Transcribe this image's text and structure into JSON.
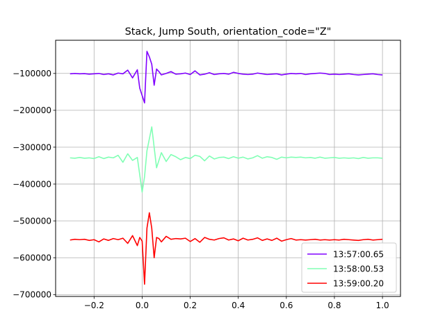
{
  "chart_data": {
    "type": "line",
    "title": "Stack, Jump South, orientation_code=\"Z\"",
    "xlabel": "",
    "ylabel": "",
    "xlim": [
      -0.36,
      1.075
    ],
    "ylim": [
      -705000,
      -10000
    ],
    "xticks": [
      -0.2,
      0.0,
      0.2,
      0.4,
      0.6,
      0.8,
      1.0
    ],
    "xtick_labels": [
      "−0.2",
      "0.0",
      "0.2",
      "0.4",
      "0.6",
      "0.8",
      "1.0"
    ],
    "yticks": [
      -700000,
      -600000,
      -500000,
      -400000,
      -300000,
      -200000,
      -100000
    ],
    "ytick_labels": [
      "−700000",
      "−600000",
      "−500000",
      "−400000",
      "−300000",
      "−200000",
      "−100000"
    ],
    "grid": true,
    "legend_position": "bottom-right",
    "series": [
      {
        "name": "13:57:00.65",
        "color": "#8000ff",
        "x": [
          -0.3,
          -0.28,
          -0.26,
          -0.24,
          -0.22,
          -0.2,
          -0.18,
          -0.16,
          -0.14,
          -0.12,
          -0.1,
          -0.08,
          -0.06,
          -0.04,
          -0.02,
          -0.01,
          0.0,
          0.01,
          0.02,
          0.03,
          0.04,
          0.05,
          0.06,
          0.07,
          0.08,
          0.1,
          0.12,
          0.14,
          0.16,
          0.18,
          0.2,
          0.22,
          0.24,
          0.26,
          0.28,
          0.3,
          0.32,
          0.34,
          0.36,
          0.38,
          0.4,
          0.42,
          0.44,
          0.46,
          0.48,
          0.5,
          0.52,
          0.54,
          0.56,
          0.58,
          0.6,
          0.62,
          0.64,
          0.66,
          0.68,
          0.7,
          0.72,
          0.74,
          0.76,
          0.78,
          0.8,
          0.82,
          0.84,
          0.86,
          0.88,
          0.9,
          0.92,
          0.94,
          0.96,
          0.98,
          1.0
        ],
        "y": [
          -101000,
          -100000,
          -101000,
          -100500,
          -102000,
          -101000,
          -100000,
          -103000,
          -101000,
          -104000,
          -99000,
          -101000,
          -91000,
          -112000,
          -90000,
          -140000,
          -160000,
          -180000,
          -40000,
          -55000,
          -75000,
          -132000,
          -88000,
          -95000,
          -104000,
          -100000,
          -95000,
          -102000,
          -101000,
          -99000,
          -103000,
          -93000,
          -104000,
          -102000,
          -98000,
          -103000,
          -101000,
          -100000,
          -102000,
          -97000,
          -100000,
          -102000,
          -103000,
          -102000,
          -99000,
          -101000,
          -103000,
          -102000,
          -101000,
          -104000,
          -102000,
          -100000,
          -101000,
          -100000,
          -103000,
          -101000,
          -100000,
          -99000,
          -100000,
          -103000,
          -102000,
          -103000,
          -102000,
          -101000,
          -103000,
          -104000,
          -103000,
          -102000,
          -101000,
          -103000,
          -104000
        ]
      },
      {
        "name": "13:58:00.53",
        "color": "#80ffb4",
        "x": [
          -0.3,
          -0.28,
          -0.26,
          -0.24,
          -0.22,
          -0.2,
          -0.18,
          -0.16,
          -0.14,
          -0.12,
          -0.1,
          -0.08,
          -0.06,
          -0.04,
          -0.02,
          0.0,
          0.01,
          0.02,
          0.04,
          0.06,
          0.08,
          0.1,
          0.12,
          0.14,
          0.16,
          0.18,
          0.2,
          0.22,
          0.24,
          0.26,
          0.28,
          0.3,
          0.32,
          0.34,
          0.36,
          0.38,
          0.4,
          0.42,
          0.44,
          0.46,
          0.48,
          0.5,
          0.52,
          0.54,
          0.56,
          0.58,
          0.6,
          0.62,
          0.64,
          0.66,
          0.68,
          0.7,
          0.72,
          0.74,
          0.76,
          0.78,
          0.8,
          0.82,
          0.84,
          0.86,
          0.88,
          0.9,
          0.92,
          0.94,
          0.96,
          0.98,
          1.0
        ],
        "y": [
          -329000,
          -330000,
          -328000,
          -330000,
          -329000,
          -331000,
          -326000,
          -331000,
          -327000,
          -329000,
          -322000,
          -341000,
          -318000,
          -336000,
          -328000,
          -422000,
          -380000,
          -310000,
          -245000,
          -356000,
          -315000,
          -339000,
          -320000,
          -326000,
          -334000,
          -328000,
          -331000,
          -322000,
          -325000,
          -337000,
          -324000,
          -332000,
          -328000,
          -327000,
          -331000,
          -326000,
          -330000,
          -327000,
          -332000,
          -329000,
          -323000,
          -330000,
          -326000,
          -328000,
          -333000,
          -327000,
          -329000,
          -327000,
          -328000,
          -327000,
          -329000,
          -328000,
          -330000,
          -327000,
          -330000,
          -329000,
          -328000,
          -330000,
          -329000,
          -330000,
          -329000,
          -331000,
          -328000,
          -330000,
          -329000,
          -329000,
          -330000
        ]
      },
      {
        "name": "13:59:00.20",
        "color": "#ff0000",
        "x": [
          -0.3,
          -0.28,
          -0.26,
          -0.24,
          -0.22,
          -0.2,
          -0.18,
          -0.16,
          -0.14,
          -0.12,
          -0.1,
          -0.08,
          -0.06,
          -0.04,
          -0.02,
          -0.01,
          0.0,
          0.01,
          0.02,
          0.03,
          0.04,
          0.05,
          0.06,
          0.07,
          0.08,
          0.1,
          0.12,
          0.14,
          0.16,
          0.18,
          0.2,
          0.22,
          0.24,
          0.26,
          0.28,
          0.3,
          0.32,
          0.34,
          0.36,
          0.38,
          0.4,
          0.42,
          0.44,
          0.46,
          0.48,
          0.5,
          0.52,
          0.54,
          0.56,
          0.58,
          0.6,
          0.62,
          0.64,
          0.66,
          0.68,
          0.7,
          0.72,
          0.74,
          0.76,
          0.78,
          0.8,
          0.82,
          0.84,
          0.86,
          0.88,
          0.9,
          0.92,
          0.94,
          0.96,
          0.98,
          1.0
        ],
        "y": [
          -552000,
          -550000,
          -551000,
          -550000,
          -553000,
          -551000,
          -557000,
          -549000,
          -553000,
          -548000,
          -551000,
          -547000,
          -561000,
          -540000,
          -567000,
          -545000,
          -555000,
          -672000,
          -520000,
          -478000,
          -520000,
          -600000,
          -545000,
          -548000,
          -557000,
          -542000,
          -550000,
          -548000,
          -549000,
          -547000,
          -556000,
          -548000,
          -558000,
          -545000,
          -550000,
          -552000,
          -548000,
          -546000,
          -552000,
          -549000,
          -554000,
          -547000,
          -552000,
          -550000,
          -546000,
          -553000,
          -549000,
          -553000,
          -547000,
          -555000,
          -551000,
          -548000,
          -552000,
          -551000,
          -552000,
          -551000,
          -550000,
          -552000,
          -551000,
          -552000,
          -551000,
          -552000,
          -550000,
          -551000,
          -552000,
          -553000,
          -551000,
          -550000,
          -552000,
          -551000,
          -550000
        ]
      }
    ]
  }
}
